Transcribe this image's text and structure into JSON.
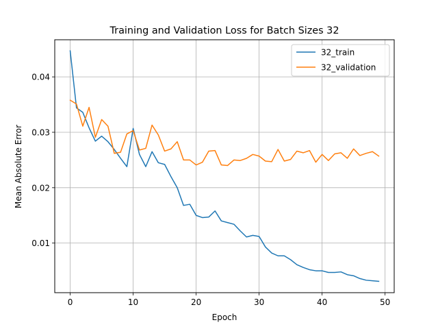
{
  "chart_data": {
    "type": "line",
    "title": "Training and Validation Loss for Batch Sizes 32",
    "xlabel": "Epoch",
    "ylabel": "Mean Absolute Error",
    "xlim": [
      -2.45,
      51.45
    ],
    "ylim": [
      0.00105,
      0.0467
    ],
    "xticks": [
      0,
      10,
      20,
      30,
      40,
      50
    ],
    "yticks": [
      0.01,
      0.02,
      0.03,
      0.04
    ],
    "ytick_labels": [
      "0.01",
      "0.02",
      "0.03",
      "0.04"
    ],
    "grid": true,
    "legend_position": "top-right",
    "x": [
      0,
      1,
      2,
      3,
      4,
      5,
      6,
      7,
      8,
      9,
      10,
      11,
      12,
      13,
      14,
      15,
      16,
      17,
      18,
      19,
      20,
      21,
      22,
      23,
      24,
      25,
      26,
      27,
      28,
      29,
      30,
      31,
      32,
      33,
      34,
      35,
      36,
      37,
      38,
      39,
      40,
      41,
      42,
      43,
      44,
      45,
      46,
      47,
      48,
      49
    ],
    "series": [
      {
        "name": "32_train",
        "color": "#1f77b4",
        "values": [
          0.0447,
          0.0344,
          0.0336,
          0.0308,
          0.0284,
          0.0293,
          0.0283,
          0.0269,
          0.0253,
          0.0238,
          0.0307,
          0.026,
          0.0238,
          0.0265,
          0.0245,
          0.0242,
          0.022,
          0.02,
          0.0168,
          0.017,
          0.015,
          0.0146,
          0.0147,
          0.0158,
          0.014,
          0.0137,
          0.0134,
          0.0122,
          0.0111,
          0.0114,
          0.0112,
          0.0093,
          0.0082,
          0.0077,
          0.0077,
          0.007,
          0.0061,
          0.0056,
          0.0052,
          0.005,
          0.005,
          0.0047,
          0.0047,
          0.0048,
          0.0043,
          0.0041,
          0.0036,
          0.0033,
          0.0032,
          0.0031
        ]
      },
      {
        "name": "32_validation",
        "color": "#ff7f0e",
        "values": [
          0.0358,
          0.0351,
          0.0311,
          0.0345,
          0.0291,
          0.0323,
          0.0311,
          0.0262,
          0.0264,
          0.0297,
          0.0303,
          0.0268,
          0.0271,
          0.0313,
          0.0295,
          0.0266,
          0.027,
          0.0283,
          0.025,
          0.025,
          0.0241,
          0.0246,
          0.0266,
          0.0267,
          0.0241,
          0.024,
          0.025,
          0.0249,
          0.0253,
          0.026,
          0.0257,
          0.0248,
          0.0247,
          0.0269,
          0.0248,
          0.0251,
          0.0266,
          0.0263,
          0.0267,
          0.0246,
          0.026,
          0.0249,
          0.0261,
          0.0263,
          0.0253,
          0.027,
          0.0258,
          0.0262,
          0.0265,
          0.0257
        ]
      }
    ]
  }
}
